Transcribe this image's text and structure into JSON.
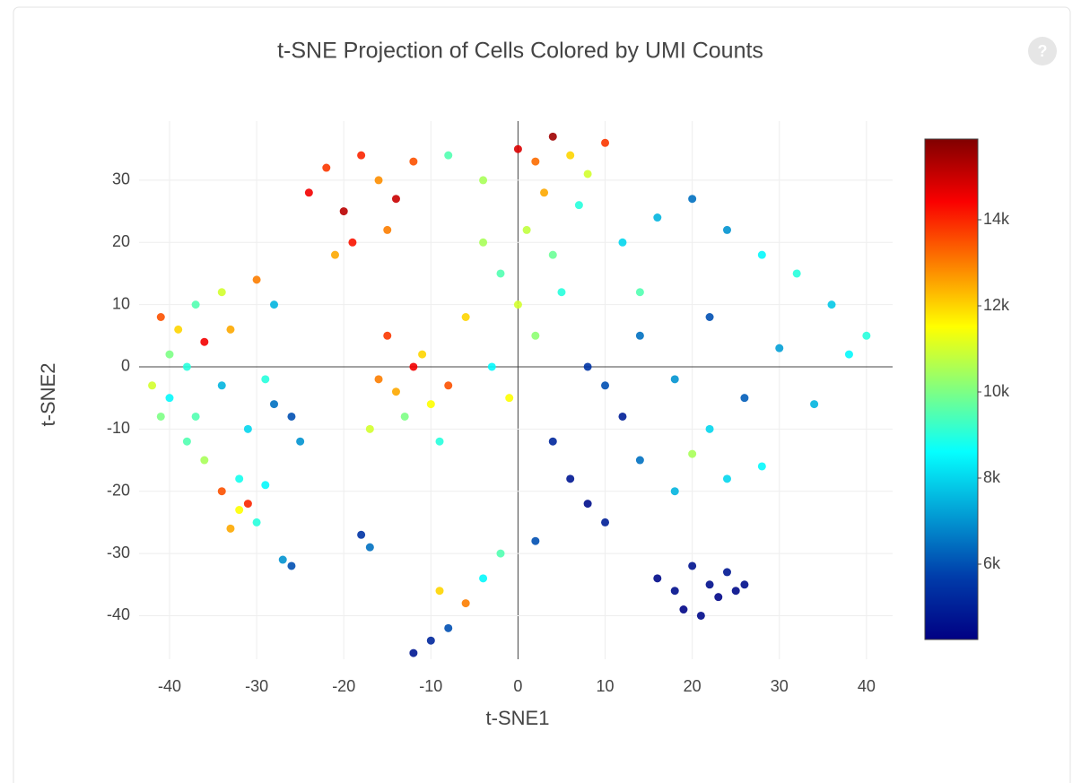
{
  "chart_data": {
    "type": "scatter",
    "title": "t-SNE Projection of Cells Colored by UMI Counts",
    "help_icon": "?",
    "x_label": "t-SNE1",
    "y_label": "t-SNE2",
    "xlim": [
      -43.5,
      43
    ],
    "ylim": [
      -47,
      39.5
    ],
    "xticks": [
      -40,
      -30,
      -20,
      -10,
      0,
      10,
      20,
      30,
      40
    ],
    "yticks": [
      -40,
      -30,
      -20,
      -10,
      0,
      10,
      20,
      30
    ],
    "grid": true,
    "zeroline": true,
    "colorscale": [
      [
        0,
        "#000083"
      ],
      [
        0.125,
        "#003caa"
      ],
      [
        0.375,
        "#05ffff"
      ],
      [
        0.625,
        "#ffff00"
      ],
      [
        0.875,
        "#fa0000"
      ],
      [
        1,
        "#800000"
      ]
    ],
    "clim": [
      4250,
      15875
    ],
    "cticks": [
      {
        "value": 6000,
        "label": "6k"
      },
      {
        "value": 8000,
        "label": "8k"
      },
      {
        "value": 10000,
        "label": "10k"
      },
      {
        "value": 12000,
        "label": "12k"
      },
      {
        "value": 14000,
        "label": "14k"
      }
    ],
    "x": [
      -24,
      -22,
      -20,
      -18,
      -16,
      -14,
      -12,
      -19,
      -15,
      -21,
      0,
      2,
      4,
      6,
      8,
      10,
      -4,
      -8,
      3,
      7,
      -41,
      -39,
      -37,
      -36,
      -34,
      -30,
      -28,
      -40,
      -38,
      -33,
      -40,
      -37,
      -34,
      -31,
      -28,
      -25,
      -36,
      -32,
      -29,
      -26,
      -34,
      -32,
      -30,
      -33,
      -31,
      -29,
      -38,
      -41,
      -42,
      -27,
      -16,
      -14,
      -12,
      -10,
      -8,
      -13,
      -11,
      -17,
      -9,
      -15,
      -4,
      -2,
      0,
      2,
      4,
      -6,
      -3,
      1,
      5,
      -1,
      12,
      16,
      20,
      24,
      28,
      32,
      36,
      14,
      22,
      30,
      8,
      10,
      12,
      14,
      18,
      22,
      26,
      34,
      38,
      40,
      4,
      6,
      8,
      10,
      14,
      18,
      24,
      28,
      2,
      20,
      16,
      18,
      19,
      20,
      21,
      22,
      23,
      24,
      25,
      26,
      -12,
      -10,
      -8,
      -6,
      -4,
      -2,
      -9,
      -18,
      -17,
      -26
    ],
    "y": [
      28,
      32,
      25,
      34,
      30,
      27,
      33,
      20,
      22,
      18,
      35,
      33,
      37,
      34,
      31,
      36,
      30,
      34,
      28,
      26,
      8,
      6,
      10,
      4,
      12,
      14,
      10,
      2,
      0,
      6,
      -5,
      -8,
      -3,
      -10,
      -6,
      -12,
      -15,
      -18,
      -2,
      -8,
      -20,
      -23,
      -25,
      -26,
      -22,
      -19,
      -12,
      -8,
      -3,
      -31,
      -2,
      -4,
      0,
      -6,
      -3,
      -8,
      2,
      -10,
      -12,
      5,
      20,
      15,
      10,
      5,
      18,
      8,
      0,
      22,
      12,
      -5,
      20,
      24,
      27,
      22,
      18,
      15,
      10,
      12,
      8,
      3,
      0,
      -3,
      -8,
      5,
      -2,
      -10,
      -5,
      -6,
      2,
      5,
      -12,
      -18,
      -22,
      -25,
      -15,
      -20,
      -18,
      -16,
      -28,
      -14,
      -34,
      -36,
      -39,
      -32,
      -40,
      -35,
      -37,
      -33,
      -36,
      -35,
      -46,
      -44,
      -42,
      -38,
      -34,
      -30,
      -36,
      -27,
      -29,
      -32
    ],
    "color_values": [
      14500,
      13800,
      15200,
      14000,
      12800,
      15000,
      13500,
      14200,
      13000,
      12500,
      14800,
      13200,
      15500,
      12000,
      11000,
      13800,
      10500,
      9500,
      12500,
      9000,
      13500,
      12000,
      9500,
      14500,
      11000,
      13000,
      7500,
      10000,
      9000,
      12500,
      8500,
      9500,
      7500,
      8000,
      6500,
      7000,
      10500,
      8800,
      9000,
      6000,
      13500,
      11500,
      9000,
      12500,
      14000,
      8500,
      9500,
      10000,
      11000,
      7000,
      13000,
      12500,
      14500,
      11500,
      13500,
      10000,
      12000,
      11000,
      9000,
      13800,
      10500,
      9500,
      11000,
      10200,
      9800,
      12000,
      8500,
      10800,
      9000,
      11500,
      8000,
      7500,
      6500,
      7000,
      8500,
      9000,
      7800,
      9500,
      6000,
      7200,
      5500,
      6000,
      5000,
      6500,
      7000,
      8000,
      6200,
      7500,
      8500,
      9000,
      5200,
      4800,
      4600,
      5000,
      6500,
      7500,
      8000,
      8500,
      6000,
      10500,
      4500,
      4600,
      4400,
      4700,
      4500,
      4600,
      4400,
      4800,
      4500,
      4600,
      4800,
      5200,
      6000,
      13000,
      8500,
      9500,
      12000,
      5500,
      6500,
      6000
    ]
  }
}
